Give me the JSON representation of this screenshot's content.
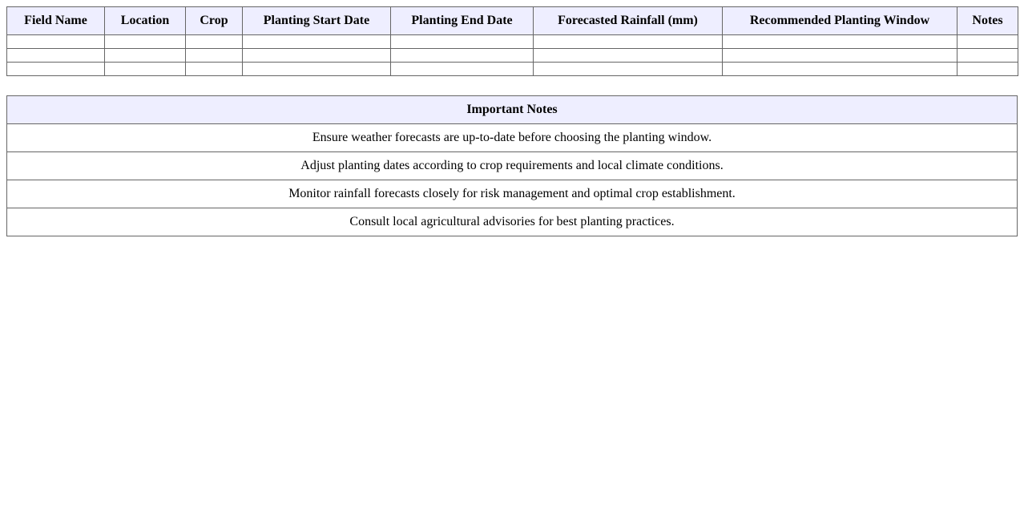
{
  "schedule": {
    "columns": [
      "Field Name",
      "Location",
      "Crop",
      "Planting Start Date",
      "Planting End Date",
      "Forecasted Rainfall (mm)",
      "Recommended Planting Window",
      "Notes"
    ],
    "rows": [
      [
        "",
        "",
        "",
        "",
        "",
        "",
        "",
        ""
      ],
      [
        "",
        "",
        "",
        "",
        "",
        "",
        "",
        ""
      ],
      [
        "",
        "",
        "",
        "",
        "",
        "",
        "",
        ""
      ]
    ]
  },
  "notes": {
    "title": "Important Notes",
    "items": [
      "Ensure weather forecasts are up-to-date before choosing the planting window.",
      "Adjust planting dates according to crop requirements and local climate conditions.",
      "Monitor rainfall forecasts closely for risk management and optimal crop establishment.",
      "Consult local agricultural advisories for best planting practices."
    ]
  },
  "colors": {
    "header_bg": "#eeeeff",
    "border": "#666666"
  }
}
